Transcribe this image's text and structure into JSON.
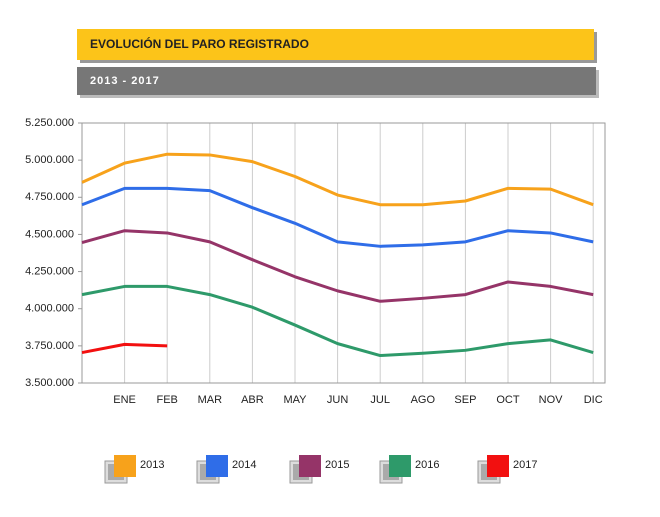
{
  "chart_data": {
    "type": "line",
    "title": "EVOLUCIÓN DEL PARO REGISTRADO",
    "subtitle": "2013 - 2017",
    "categories": [
      null,
      "ENE",
      "FEB",
      "MAR",
      "ABR",
      "MAY",
      "JUN",
      "JUL",
      "AGO",
      "SEP",
      "OCT",
      "NOV",
      "DIC"
    ],
    "series": [
      {
        "name": "2013",
        "color": "#f7a21b",
        "values": [
          4850000,
          4980000,
          5040000,
          5035000,
          4990000,
          4890000,
          4765000,
          4700000,
          4700000,
          4725000,
          4810000,
          4805000,
          4700000
        ]
      },
      {
        "name": "2014",
        "color": "#2f6de8",
        "values": [
          4700000,
          4810000,
          4810000,
          4795000,
          4680000,
          4575000,
          4450000,
          4420000,
          4430000,
          4450000,
          4525000,
          4510000,
          4450000
        ]
      },
      {
        "name": "2015",
        "color": "#953468",
        "values": [
          4445000,
          4525000,
          4510000,
          4450000,
          4330000,
          4215000,
          4120000,
          4050000,
          4070000,
          4095000,
          4180000,
          4150000,
          4095000
        ]
      },
      {
        "name": "2016",
        "color": "#2e9a6a",
        "values": [
          4095000,
          4150000,
          4150000,
          4095000,
          4010000,
          3890000,
          3765000,
          3685000,
          3700000,
          3720000,
          3765000,
          3790000,
          3705000
        ]
      },
      {
        "name": "2017",
        "color": "#f21010",
        "values": [
          3705000,
          3760000,
          3750000,
          null,
          null,
          null,
          null,
          null,
          null,
          null,
          null,
          null,
          null
        ]
      }
    ],
    "ylim": [
      3500000,
      5250000
    ],
    "yticks": [
      {
        "value": 3500000,
        "label": "3.500.000"
      },
      {
        "value": 3750000,
        "label": "3.750.000"
      },
      {
        "value": 4000000,
        "label": "4.000.000"
      },
      {
        "value": 4250000,
        "label": "4.250.000"
      },
      {
        "value": 4500000,
        "label": "4.500.000"
      },
      {
        "value": 4750000,
        "label": "4.750.000"
      },
      {
        "value": 5000000,
        "label": "5.000.000"
      },
      {
        "value": 5250000,
        "label": "5.250.000"
      }
    ],
    "grid": true
  }
}
